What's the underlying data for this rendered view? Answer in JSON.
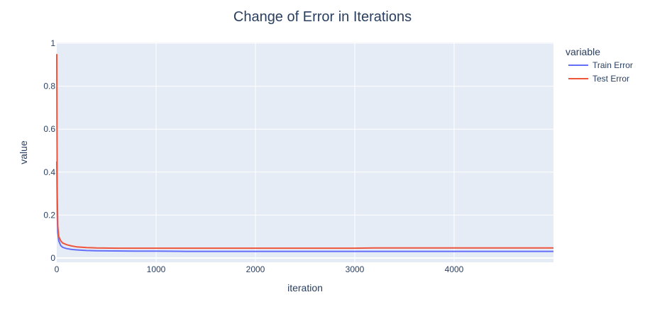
{
  "chart_data": {
    "type": "line",
    "title": "Change of Error in Iterations",
    "xlabel": "iteration",
    "ylabel": "value",
    "xlim": [
      0,
      5000
    ],
    "ylim": [
      0,
      1
    ],
    "xticks": [
      0,
      1000,
      2000,
      3000,
      4000
    ],
    "yticks": [
      0,
      0.2,
      0.4,
      0.6,
      0.8,
      1
    ],
    "grid": true,
    "legend": {
      "title": "variable",
      "placement": "right"
    },
    "series": [
      {
        "name": "Train Error",
        "color": "#636efa",
        "x": [
          0,
          5,
          10,
          20,
          40,
          60,
          100,
          150,
          200,
          300,
          400,
          600,
          800,
          1000,
          1300,
          1600,
          2000,
          2500,
          3000,
          3500,
          4000,
          4500,
          5000
        ],
        "y": [
          0.45,
          0.2,
          0.12,
          0.08,
          0.058,
          0.05,
          0.044,
          0.04,
          0.038,
          0.035,
          0.034,
          0.033,
          0.032,
          0.032,
          0.031,
          0.031,
          0.031,
          0.031,
          0.031,
          0.031,
          0.031,
          0.031,
          0.031
        ]
      },
      {
        "name": "Test Error",
        "color": "#ef553b",
        "x": [
          0,
          2,
          5,
          10,
          20,
          40,
          60,
          100,
          150,
          200,
          300,
          400,
          600,
          800,
          1000,
          1500,
          2000,
          2500,
          3000,
          3200,
          3500,
          4000,
          4500,
          5000
        ],
        "y": [
          0.95,
          0.6,
          0.3,
          0.15,
          0.1,
          0.08,
          0.07,
          0.062,
          0.056,
          0.052,
          0.049,
          0.047,
          0.046,
          0.046,
          0.046,
          0.046,
          0.046,
          0.046,
          0.046,
          0.047,
          0.047,
          0.047,
          0.047,
          0.047
        ]
      }
    ]
  }
}
